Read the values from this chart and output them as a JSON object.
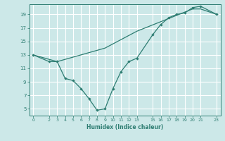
{
  "title": "",
  "xlabel": "Humidex (Indice chaleur)",
  "bg_color": "#cce8e8",
  "grid_color": "#ffffff",
  "line_color": "#2e7d72",
  "xlim": [
    -0.5,
    23.5
  ],
  "ylim": [
    4.0,
    20.5
  ],
  "xticks": [
    0,
    2,
    3,
    4,
    5,
    6,
    7,
    8,
    9,
    10,
    11,
    12,
    13,
    15,
    16,
    17,
    18,
    19,
    20,
    21,
    23
  ],
  "yticks": [
    5,
    7,
    9,
    11,
    13,
    15,
    17,
    19
  ],
  "line1_x": [
    0,
    2,
    3,
    4,
    5,
    6,
    7,
    8,
    9,
    10,
    11,
    12,
    13,
    15,
    16,
    17,
    18,
    19,
    20,
    21,
    23
  ],
  "line1_y": [
    13,
    12,
    12,
    9.5,
    9.2,
    8.0,
    6.5,
    4.8,
    5.0,
    8.0,
    10.5,
    12.0,
    12.5,
    16.0,
    17.5,
    18.5,
    19.0,
    19.2,
    20.0,
    20.2,
    19.0
  ],
  "line2_x": [
    0,
    3,
    9,
    13,
    20,
    21,
    23
  ],
  "line2_y": [
    13,
    12,
    14.0,
    16.5,
    19.8,
    19.8,
    19.0
  ]
}
